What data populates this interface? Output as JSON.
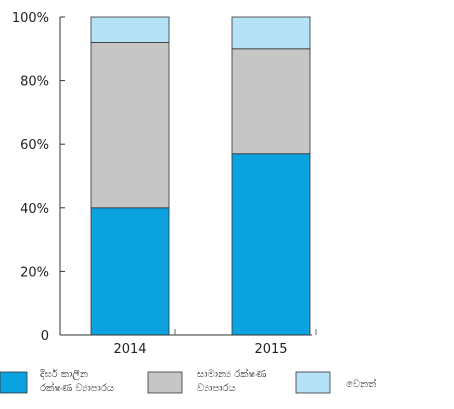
{
  "chart_data": {
    "type": "bar",
    "stacked": true,
    "percent": true,
    "categories": [
      "2014",
      "2015"
    ],
    "series": [
      {
        "name": "දීර්ඝ කාලීන රක්ෂණ ව්‍යාපාරය",
        "values": [
          40,
          57
        ],
        "color": "#0aa3e0"
      },
      {
        "name": "සාමාන්‍ය රක්ෂණ ව්‍යාපාරය",
        "values": [
          52,
          33
        ],
        "color": "#c6c6c6"
      },
      {
        "name": "වෙනත්",
        "values": [
          8,
          10
        ],
        "color": "#b6e2f7"
      }
    ],
    "ylim": [
      0,
      100
    ],
    "yticks": [
      "0",
      "20%",
      "40%",
      "60%",
      "80%",
      "100%"
    ],
    "ytick_values": [
      0,
      20,
      40,
      60,
      80,
      100
    ],
    "grid": false,
    "legend_position": "bottom",
    "xlabel": "",
    "ylabel": "",
    "title": ""
  }
}
